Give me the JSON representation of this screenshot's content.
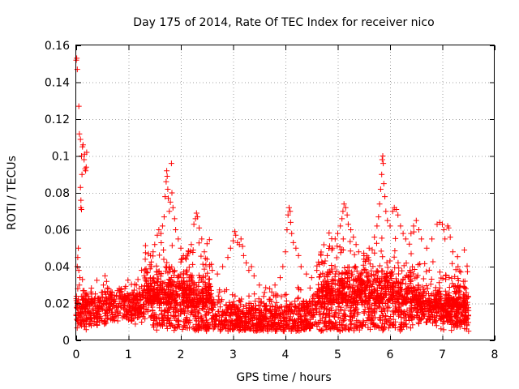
{
  "chart_data": {
    "type": "scatter",
    "title": "Day 175 of 2014, Rate Of TEC Index for receiver nico",
    "xlabel": "GPS time / hours",
    "ylabel": "ROTI / TECUs",
    "xlim": [
      0,
      8
    ],
    "ylim": [
      0,
      0.16
    ],
    "xticks": [
      0,
      1,
      2,
      3,
      4,
      5,
      6,
      7,
      8
    ],
    "xtick_labels": [
      "0",
      "1",
      "2",
      "3",
      "4",
      "5",
      "6",
      "7",
      "8"
    ],
    "yticks": [
      0,
      0.02,
      0.04,
      0.06,
      0.08,
      0.1,
      0.12,
      0.14,
      0.16
    ],
    "ytick_labels": [
      "0",
      "0.02",
      "0.04",
      "0.06",
      "0.08",
      "0.1",
      "0.12",
      "0.14",
      "0.16"
    ],
    "grid": true,
    "marker": "+",
    "color": "#ff0000",
    "series": [
      {
        "name": "ROTI",
        "points": [
          [
            0.0,
            0.152
          ],
          [
            0.01,
            0.153
          ],
          [
            0.02,
            0.147
          ],
          [
            0.05,
            0.127
          ],
          [
            0.06,
            0.112
          ],
          [
            0.08,
            0.109
          ],
          [
            0.1,
            0.1
          ],
          [
            0.11,
            0.09
          ],
          [
            0.12,
            0.105
          ],
          [
            0.13,
            0.106
          ],
          [
            0.15,
            0.098
          ],
          [
            0.16,
            0.101
          ],
          [
            0.17,
            0.093
          ],
          [
            0.18,
            0.092
          ],
          [
            0.19,
            0.094
          ],
          [
            0.2,
            0.102
          ],
          [
            0.09,
            0.076
          ],
          [
            0.1,
            0.071
          ],
          [
            0.09,
            0.072
          ],
          [
            0.08,
            0.083
          ],
          [
            0.03,
            0.045
          ],
          [
            0.04,
            0.05
          ],
          [
            0.02,
            0.04
          ],
          [
            0.05,
            0.038
          ],
          [
            0.06,
            0.03
          ],
          [
            0.07,
            0.034
          ],
          [
            0.03,
            0.028
          ],
          [
            0.04,
            0.022
          ],
          [
            0.01,
            0.018
          ],
          [
            0.0,
            0.014
          ],
          [
            0.12,
            0.033
          ],
          [
            0.15,
            0.027
          ],
          [
            0.55,
            0.035
          ],
          [
            0.58,
            0.032
          ],
          [
            0.52,
            0.03
          ],
          [
            0.5,
            0.026
          ],
          [
            0.62,
            0.028
          ],
          [
            0.79,
            0.027
          ],
          [
            0.84,
            0.024
          ],
          [
            1.15,
            0.03
          ],
          [
            1.18,
            0.033
          ],
          [
            1.25,
            0.038
          ],
          [
            1.3,
            0.035
          ],
          [
            1.32,
            0.044
          ],
          [
            1.38,
            0.047
          ],
          [
            1.42,
            0.046
          ],
          [
            1.47,
            0.048
          ],
          [
            1.5,
            0.052
          ],
          [
            1.55,
            0.057
          ],
          [
            1.58,
            0.06
          ],
          [
            1.62,
            0.058
          ],
          [
            1.65,
            0.062
          ],
          [
            1.68,
            0.067
          ],
          [
            1.7,
            0.078
          ],
          [
            1.72,
            0.086
          ],
          [
            1.73,
            0.092
          ],
          [
            1.74,
            0.089
          ],
          [
            1.75,
            0.082
          ],
          [
            1.76,
            0.077
          ],
          [
            1.78,
            0.07
          ],
          [
            1.8,
            0.075
          ],
          [
            1.82,
            0.096
          ],
          [
            1.83,
            0.08
          ],
          [
            1.85,
            0.072
          ],
          [
            1.88,
            0.066
          ],
          [
            1.9,
            0.06
          ],
          [
            1.95,
            0.055
          ],
          [
            2.0,
            0.05
          ],
          [
            2.05,
            0.046
          ],
          [
            2.1,
            0.044
          ],
          [
            2.15,
            0.048
          ],
          [
            2.2,
            0.052
          ],
          [
            2.25,
            0.063
          ],
          [
            2.28,
            0.066
          ],
          [
            2.3,
            0.069
          ],
          [
            2.32,
            0.067
          ],
          [
            2.35,
            0.061
          ],
          [
            2.4,
            0.055
          ],
          [
            2.45,
            0.048
          ],
          [
            2.5,
            0.044
          ],
          [
            2.55,
            0.04
          ],
          [
            2.6,
            0.038
          ],
          [
            2.7,
            0.036
          ],
          [
            2.8,
            0.04
          ],
          [
            2.9,
            0.045
          ],
          [
            2.95,
            0.05
          ],
          [
            3.0,
            0.054
          ],
          [
            3.03,
            0.059
          ],
          [
            3.05,
            0.057
          ],
          [
            3.08,
            0.053
          ],
          [
            3.12,
            0.052
          ],
          [
            3.15,
            0.055
          ],
          [
            3.18,
            0.051
          ],
          [
            3.2,
            0.046
          ],
          [
            3.25,
            0.042
          ],
          [
            3.3,
            0.038
          ],
          [
            3.35,
            0.04
          ],
          [
            3.4,
            0.035
          ],
          [
            3.5,
            0.03
          ],
          [
            3.6,
            0.026
          ],
          [
            3.7,
            0.028
          ],
          [
            3.8,
            0.03
          ],
          [
            3.9,
            0.034
          ],
          [
            3.95,
            0.04
          ],
          [
            4.0,
            0.048
          ],
          [
            4.03,
            0.06
          ],
          [
            4.05,
            0.068
          ],
          [
            4.07,
            0.072
          ],
          [
            4.09,
            0.07
          ],
          [
            4.1,
            0.064
          ],
          [
            4.12,
            0.058
          ],
          [
            4.15,
            0.053
          ],
          [
            4.2,
            0.05
          ],
          [
            4.25,
            0.046
          ],
          [
            4.3,
            0.04
          ],
          [
            4.4,
            0.036
          ],
          [
            4.5,
            0.034
          ],
          [
            4.6,
            0.038
          ],
          [
            4.7,
            0.042
          ],
          [
            4.8,
            0.046
          ],
          [
            4.9,
            0.05
          ],
          [
            4.95,
            0.055
          ],
          [
            5.0,
            0.058
          ],
          [
            5.05,
            0.062
          ],
          [
            5.08,
            0.066
          ],
          [
            5.1,
            0.07
          ],
          [
            5.12,
            0.074
          ],
          [
            5.15,
            0.072
          ],
          [
            5.18,
            0.068
          ],
          [
            5.2,
            0.063
          ],
          [
            5.25,
            0.06
          ],
          [
            5.3,
            0.056
          ],
          [
            5.35,
            0.052
          ],
          [
            5.4,
            0.048
          ],
          [
            5.5,
            0.046
          ],
          [
            5.6,
            0.05
          ],
          [
            5.7,
            0.056
          ],
          [
            5.75,
            0.062
          ],
          [
            5.78,
            0.067
          ],
          [
            5.8,
            0.074
          ],
          [
            5.82,
            0.082
          ],
          [
            5.84,
            0.09
          ],
          [
            5.85,
            0.098
          ],
          [
            5.86,
            0.1
          ],
          [
            5.87,
            0.096
          ],
          [
            5.88,
            0.085
          ],
          [
            5.9,
            0.078
          ],
          [
            5.92,
            0.07
          ],
          [
            5.95,
            0.065
          ],
          [
            6.0,
            0.062
          ],
          [
            6.05,
            0.07
          ],
          [
            6.08,
            0.072
          ],
          [
            6.12,
            0.071
          ],
          [
            6.15,
            0.068
          ],
          [
            6.2,
            0.062
          ],
          [
            6.25,
            0.058
          ],
          [
            6.3,
            0.055
          ],
          [
            6.4,
            0.058
          ],
          [
            6.45,
            0.062
          ],
          [
            6.5,
            0.065
          ],
          [
            6.55,
            0.06
          ],
          [
            6.6,
            0.055
          ],
          [
            6.7,
            0.05
          ],
          [
            6.8,
            0.055
          ],
          [
            6.9,
            0.063
          ],
          [
            6.95,
            0.064
          ],
          [
            7.0,
            0.063
          ],
          [
            7.03,
            0.06
          ],
          [
            7.05,
            0.055
          ],
          [
            7.1,
            0.062
          ],
          [
            7.12,
            0.061
          ],
          [
            7.15,
            0.056
          ],
          [
            7.2,
            0.048
          ],
          [
            7.3,
            0.04
          ],
          [
            7.35,
            0.037
          ],
          [
            7.4,
            0.032
          ],
          [
            7.42,
            0.049
          ],
          [
            7.45,
            0.028
          ],
          [
            7.48,
            0.012
          ],
          [
            7.5,
            0.005
          ],
          [
            7.47,
            0.008
          ],
          [
            7.44,
            0.01
          ],
          [
            6.05,
            0.008
          ],
          [
            6.1,
            0.01
          ],
          [
            2.95,
            0.008
          ],
          [
            5.58,
            0.007
          ],
          [
            5.62,
            0.006
          ],
          [
            6.55,
            0.009
          ],
          [
            6.7,
            0.01
          ]
        ]
      }
    ]
  }
}
